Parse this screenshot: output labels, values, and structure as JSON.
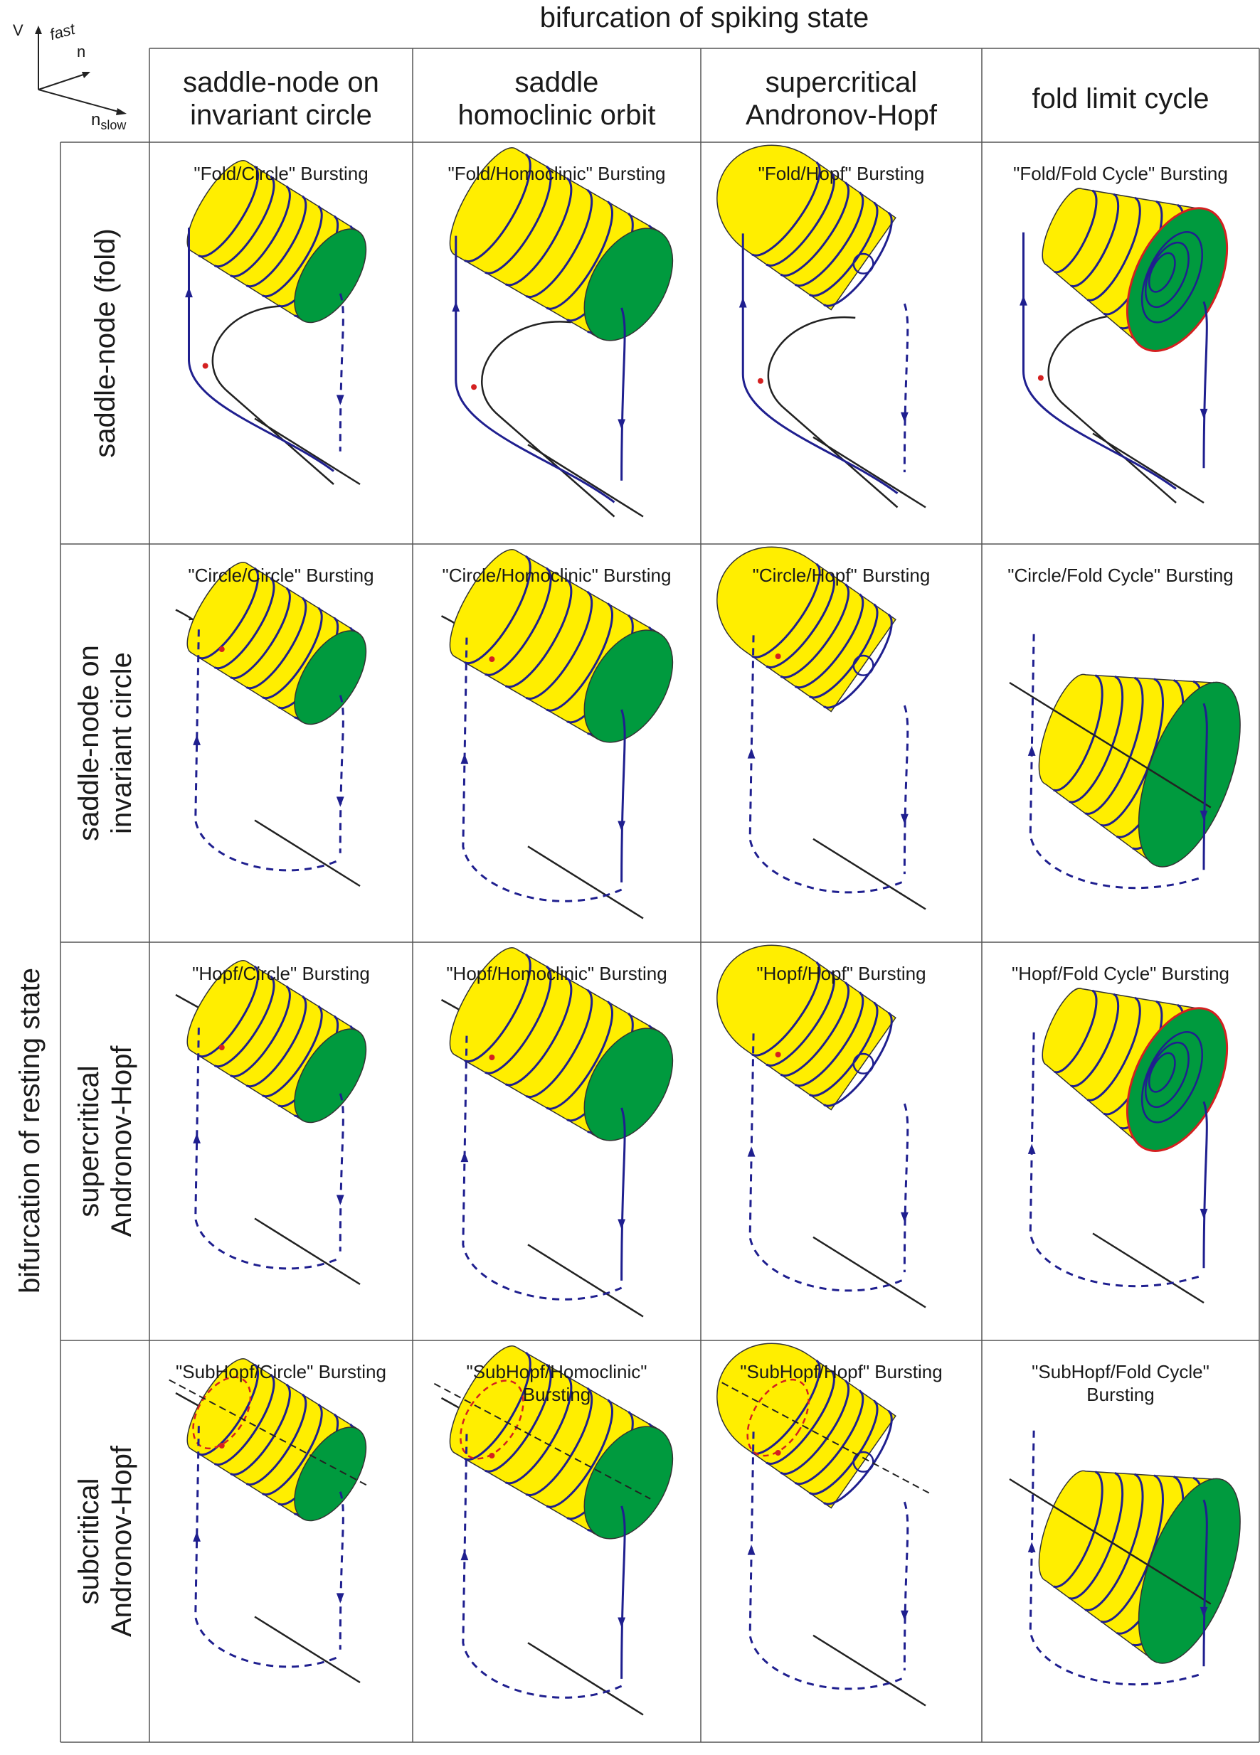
{
  "figure": {
    "top_title": "bifurcation of spiking state",
    "side_title": "bifurcation of resting state",
    "columns": [
      {
        "label_l1": "saddle-node on",
        "label_l2": "invariant circle"
      },
      {
        "label_l1": "saddle",
        "label_l2": "homoclinic orbit"
      },
      {
        "label_l1": "supercritical",
        "label_l2": "Andronov-Hopf"
      },
      {
        "label_l1": "fold limit cycle",
        "label_l2": ""
      }
    ],
    "rows": [
      {
        "label_l1": "saddle-node (fold)",
        "label_l2": ""
      },
      {
        "label_l1": "saddle-node on",
        "label_l2": "invariant circle"
      },
      {
        "label_l1": "supercritical",
        "label_l2": "Andronov-Hopf"
      },
      {
        "label_l1": "subcritical",
        "label_l2": "Andronov-Hopf"
      }
    ],
    "cells": [
      [
        "\"Fold/Circle\" Bursting",
        "\"Fold/Homoclinic\" Bursting",
        "\"Fold/Hopf\" Bursting",
        "\"Fold/Fold Cycle\" Bursting"
      ],
      [
        "\"Circle/Circle\" Bursting",
        "\"Circle/Homoclinic\" Bursting",
        "\"Circle/Hopf\" Bursting",
        "\"Circle/Fold Cycle\" Bursting"
      ],
      [
        "\"Hopf/Circle\" Bursting",
        "\"Hopf/Homoclinic\" Bursting",
        "\"Hopf/Hopf\" Bursting",
        "\"Hopf/Fold Cycle\" Bursting"
      ],
      [
        "\"SubHopf/Circle\" Bursting",
        "\"SubHopf/Homoclinic\"\nBursting",
        "\"SubHopf/Hopf\" Bursting",
        "\"SubHopf/Fold Cycle\"\nBursting"
      ]
    ],
    "axes_hint": {
      "v": "V",
      "fast": "fast",
      "n": "n",
      "n_slow_base": "n",
      "n_slow_sub": "slow"
    },
    "colors": {
      "cylinder": "#ffee00",
      "face": "#009a3e",
      "trajectory": "#1f1f8f",
      "curve": "#222222",
      "point": "#d42020",
      "grid": "#555555"
    }
  }
}
